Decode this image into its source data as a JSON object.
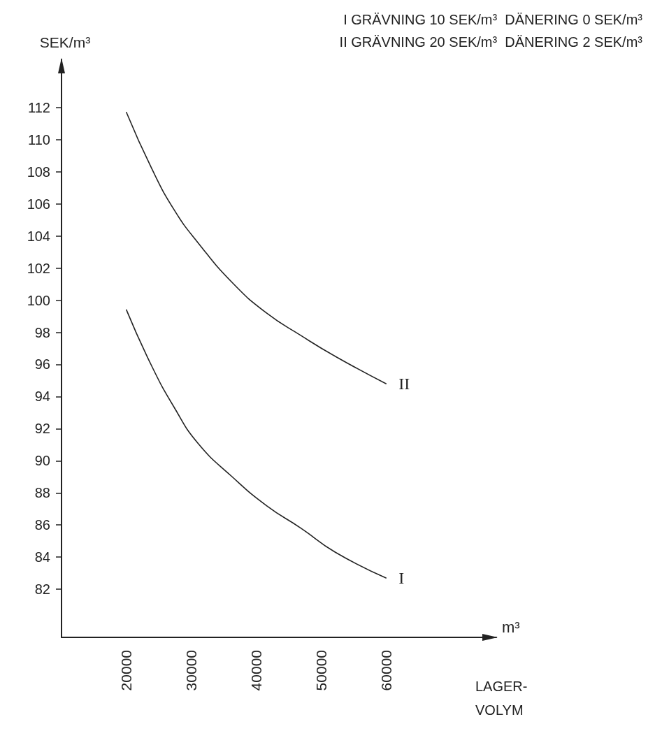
{
  "chart_data": {
    "type": "line",
    "ylabel": "SEK/m³",
    "xlabel": "m³",
    "annotations": [
      "I GRÄVNING 10 SEK/m³  DÄNERING 0 SEK/m³",
      "II GRÄVNING 20 SEK/m³  DÄNERING 2 SEK/m³",
      "LAGER-VOLYM"
    ],
    "series": [
      {
        "name": "I",
        "color": "#222222",
        "x": [
          20000,
          23900,
          27400,
          31000,
          36300,
          41600,
          46900,
          52200,
          60000
        ],
        "values": [
          99.4,
          95.9,
          93.3,
          91.1,
          89.0,
          87.2,
          85.8,
          84.3,
          82.7
        ]
      },
      {
        "name": "II",
        "color": "#222222",
        "x": [
          20000,
          23900,
          27400,
          31000,
          36300,
          41600,
          46900,
          52200,
          60000
        ],
        "values": [
          111.7,
          108.2,
          105.6,
          103.6,
          101.1,
          99.2,
          97.8,
          96.5,
          94.8
        ]
      }
    ],
    "xlim": [
      10000,
      77000
    ],
    "xticks": [
      20000,
      30000,
      40000,
      50000,
      60000
    ],
    "ylim": [
      79,
      115
    ],
    "yticks": [
      82,
      84,
      86,
      88,
      90,
      92,
      94,
      96,
      98,
      100,
      102,
      104,
      106,
      108,
      110,
      112
    ],
    "grid": false,
    "legend": false,
    "marker": "none",
    "line_style": "solid"
  }
}
